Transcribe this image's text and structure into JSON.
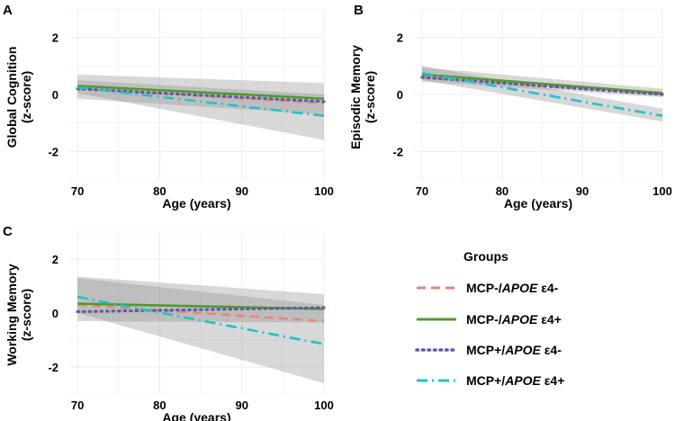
{
  "legend": {
    "title": "Groups",
    "items": [
      {
        "key": "g1",
        "prefix": "MCP-/",
        "gene": "APOE",
        "allele": " ε4-",
        "color": "#e8857a",
        "dash": "10,6"
      },
      {
        "key": "g2",
        "prefix": "MCP-/",
        "gene": "APOE",
        "allele": " ε4+",
        "color": "#4f9a2b",
        "dash": ""
      },
      {
        "key": "g3",
        "prefix": "MCP+/",
        "gene": "APOE",
        "allele": " ε4-",
        "color": "#5b5ea6",
        "dash": "1.5,5"
      },
      {
        "key": "g4",
        "prefix": "MCP+/",
        "gene": "APOE",
        "allele": " ε4+",
        "color": "#21c1cd",
        "dash": "12,5,2,5"
      }
    ]
  },
  "chart_data": [
    {
      "panel": "A",
      "type": "line",
      "xlabel": "Age (years)",
      "ylabel_lines": [
        "Global Cognition",
        "(z-score)"
      ],
      "xlim": [
        69,
        100
      ],
      "ylim": [
        -3,
        3
      ],
      "xticks": [
        70,
        80,
        90,
        100
      ],
      "yticks": [
        2,
        0,
        -2
      ],
      "x": [
        70,
        100
      ],
      "series": [
        {
          "key": "g1",
          "values": [
            0.2,
            -0.3
          ]
        },
        {
          "key": "g2",
          "values": [
            0.3,
            -0.15
          ]
        },
        {
          "key": "g3",
          "values": [
            0.2,
            -0.25
          ]
        },
        {
          "key": "g4",
          "values": [
            0.25,
            -0.75
          ]
        }
      ],
      "bands": [
        {
          "lower": [
            -0.15,
            -0.7
          ],
          "upper": [
            0.7,
            0.4
          ]
        },
        {
          "lower": [
            0.05,
            -1.6
          ],
          "upper": [
            0.5,
            0.0
          ]
        }
      ]
    },
    {
      "panel": "B",
      "type": "line",
      "xlabel": "Age (years)",
      "ylabel_lines": [
        "Episodic Memory",
        "(z-score)"
      ],
      "xlim": [
        69,
        100
      ],
      "ylim": [
        -3,
        3
      ],
      "xticks": [
        70,
        80,
        90,
        100
      ],
      "yticks": [
        2,
        0,
        -2
      ],
      "x": [
        70,
        100
      ],
      "series": [
        {
          "key": "g1",
          "values": [
            0.6,
            0.0
          ]
        },
        {
          "key": "g2",
          "values": [
            0.7,
            0.05
          ]
        },
        {
          "key": "g3",
          "values": [
            0.6,
            0.0
          ]
        },
        {
          "key": "g4",
          "values": [
            0.75,
            -0.75
          ]
        }
      ],
      "bands": [
        {
          "lower": [
            0.45,
            -0.1
          ],
          "upper": [
            0.95,
            0.2
          ]
        },
        {
          "lower": [
            0.5,
            -0.95
          ],
          "upper": [
            1.0,
            -0.5
          ]
        }
      ]
    },
    {
      "panel": "C",
      "type": "line",
      "xlabel": "Age (years)",
      "ylabel_lines": [
        "Working Memory",
        "(z-score)"
      ],
      "xlim": [
        69,
        100
      ],
      "ylim": [
        -3,
        3
      ],
      "xticks": [
        70,
        80,
        90,
        100
      ],
      "yticks": [
        2,
        0,
        -2
      ],
      "x": [
        70,
        100
      ],
      "series": [
        {
          "key": "g1",
          "values": [
            0.3,
            -0.3
          ]
        },
        {
          "key": "g2",
          "values": [
            0.35,
            0.15
          ]
        },
        {
          "key": "g3",
          "values": [
            0.05,
            0.2
          ]
        },
        {
          "key": "g4",
          "values": [
            0.6,
            -1.15
          ]
        }
      ],
      "bands": [
        {
          "lower": [
            -0.3,
            -0.35
          ],
          "upper": [
            1.35,
            0.7
          ]
        },
        {
          "lower": [
            0.0,
            -2.6
          ],
          "upper": [
            1.3,
            0.3
          ]
        }
      ]
    }
  ]
}
